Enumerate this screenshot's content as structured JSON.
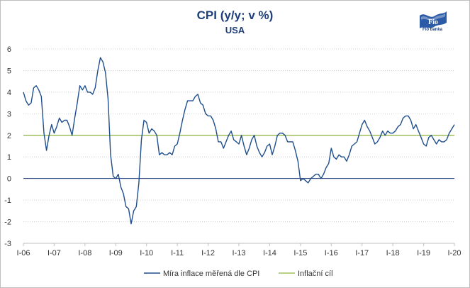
{
  "brand": {
    "logo_text": "Fio banka",
    "logo_mark": "Fio"
  },
  "chart_data": {
    "type": "line",
    "title": "CPI (y/y; v %)",
    "subtitle": "USA",
    "xlabel": "",
    "ylabel": "",
    "ylim": [
      -3,
      6
    ],
    "yticks": [
      -3,
      -2,
      -1,
      0,
      1,
      2,
      3,
      4,
      5,
      6
    ],
    "xlim": [
      2006.0,
      2020.0
    ],
    "xticks": [
      {
        "x": 2006,
        "label": "I-06"
      },
      {
        "x": 2007,
        "label": "I-07"
      },
      {
        "x": 2008,
        "label": "I-08"
      },
      {
        "x": 2009,
        "label": "I-09"
      },
      {
        "x": 2010,
        "label": "I-10"
      },
      {
        "x": 2011,
        "label": "I-11"
      },
      {
        "x": 2012,
        "label": "I-12"
      },
      {
        "x": 2013,
        "label": "I-13"
      },
      {
        "x": 2014,
        "label": "I-14"
      },
      {
        "x": 2015,
        "label": "I-15"
      },
      {
        "x": 2016,
        "label": "I-16"
      },
      {
        "x": 2017,
        "label": "I-17"
      },
      {
        "x": 2018,
        "label": "I-18"
      },
      {
        "x": 2019,
        "label": "I-19"
      },
      {
        "x": 2020,
        "label": "I-20"
      }
    ],
    "grid": "horizontal dotted",
    "legend_position": "bottom",
    "series": [
      {
        "name": "Míra inflace měřená dle CPI",
        "color": "#1f4e8c",
        "x": [
          2006.0,
          2006.083,
          2006.167,
          2006.25,
          2006.333,
          2006.417,
          2006.5,
          2006.583,
          2006.667,
          2006.75,
          2006.833,
          2006.917,
          2007.0,
          2007.083,
          2007.167,
          2007.25,
          2007.333,
          2007.417,
          2007.5,
          2007.583,
          2007.667,
          2007.75,
          2007.833,
          2007.917,
          2008.0,
          2008.083,
          2008.167,
          2008.25,
          2008.333,
          2008.417,
          2008.5,
          2008.583,
          2008.667,
          2008.75,
          2008.833,
          2008.917,
          2009.0,
          2009.083,
          2009.167,
          2009.25,
          2009.333,
          2009.417,
          2009.5,
          2009.583,
          2009.667,
          2009.75,
          2009.833,
          2009.917,
          2010.0,
          2010.083,
          2010.167,
          2010.25,
          2010.333,
          2010.417,
          2010.5,
          2010.583,
          2010.667,
          2010.75,
          2010.833,
          2010.917,
          2011.0,
          2011.083,
          2011.167,
          2011.25,
          2011.333,
          2011.417,
          2011.5,
          2011.583,
          2011.667,
          2011.75,
          2011.833,
          2011.917,
          2012.0,
          2012.083,
          2012.167,
          2012.25,
          2012.333,
          2012.417,
          2012.5,
          2012.583,
          2012.667,
          2012.75,
          2012.833,
          2012.917,
          2013.0,
          2013.083,
          2013.167,
          2013.25,
          2013.333,
          2013.417,
          2013.5,
          2013.583,
          2013.667,
          2013.75,
          2013.833,
          2013.917,
          2014.0,
          2014.083,
          2014.167,
          2014.25,
          2014.333,
          2014.417,
          2014.5,
          2014.583,
          2014.667,
          2014.75,
          2014.833,
          2014.917,
          2015.0,
          2015.083,
          2015.167,
          2015.25,
          2015.333,
          2015.417,
          2015.5,
          2015.583,
          2015.667,
          2015.75,
          2015.833,
          2015.917,
          2016.0,
          2016.083,
          2016.167,
          2016.25,
          2016.333,
          2016.417,
          2016.5,
          2016.583,
          2016.667,
          2016.75,
          2016.833,
          2016.917,
          2017.0,
          2017.083,
          2017.167,
          2017.25,
          2017.333,
          2017.417,
          2017.5,
          2017.583,
          2017.667,
          2017.75,
          2017.833,
          2017.917,
          2018.0,
          2018.083,
          2018.167,
          2018.25,
          2018.333,
          2018.417,
          2018.5,
          2018.583,
          2018.667,
          2018.75,
          2018.833,
          2018.917,
          2019.0,
          2019.083,
          2019.167,
          2019.25,
          2019.333,
          2019.417,
          2019.5,
          2019.583,
          2019.667,
          2019.75,
          2019.833,
          2019.917,
          2020.0
        ],
        "values": [
          4.0,
          3.6,
          3.4,
          3.5,
          4.2,
          4.3,
          4.1,
          3.8,
          2.1,
          1.3,
          2.0,
          2.5,
          2.1,
          2.4,
          2.8,
          2.6,
          2.7,
          2.7,
          2.4,
          2.0,
          2.8,
          3.5,
          4.3,
          4.1,
          4.3,
          4.0,
          4.0,
          3.9,
          4.2,
          5.0,
          5.6,
          5.4,
          4.9,
          3.7,
          1.1,
          0.1,
          0.0,
          0.2,
          -0.4,
          -0.7,
          -1.3,
          -1.4,
          -2.1,
          -1.5,
          -1.3,
          -0.2,
          1.8,
          2.7,
          2.6,
          2.1,
          2.3,
          2.2,
          2.0,
          1.1,
          1.2,
          1.1,
          1.1,
          1.2,
          1.1,
          1.5,
          1.6,
          2.1,
          2.7,
          3.2,
          3.6,
          3.6,
          3.6,
          3.8,
          3.9,
          3.5,
          3.4,
          3.0,
          2.9,
          2.9,
          2.7,
          2.3,
          1.7,
          1.7,
          1.4,
          1.7,
          2.0,
          2.2,
          1.8,
          1.7,
          1.6,
          2.0,
          1.5,
          1.1,
          1.4,
          1.8,
          2.0,
          1.5,
          1.2,
          1.0,
          1.2,
          1.5,
          1.6,
          1.1,
          1.5,
          2.0,
          2.1,
          2.1,
          2.0,
          1.7,
          1.7,
          1.7,
          1.3,
          0.8,
          -0.1,
          0.0,
          -0.1,
          -0.2,
          0.0,
          0.1,
          0.2,
          0.2,
          0.0,
          0.2,
          0.5,
          0.7,
          1.4,
          1.0,
          0.9,
          1.1,
          1.0,
          1.0,
          0.8,
          1.1,
          1.5,
          1.6,
          1.7,
          2.1,
          2.5,
          2.7,
          2.4,
          2.2,
          1.9,
          1.6,
          1.7,
          1.9,
          2.2,
          2.0,
          2.2,
          2.1,
          2.1,
          2.2,
          2.4,
          2.5,
          2.8,
          2.9,
          2.9,
          2.7,
          2.3,
          2.5,
          2.2,
          1.9,
          1.6,
          1.5,
          1.9,
          2.0,
          1.8,
          1.6,
          1.8,
          1.7,
          1.7,
          1.8,
          2.1,
          2.3,
          2.5
        ]
      },
      {
        "name": "Inflační cíl",
        "color": "#8db33a",
        "x": [
          2006.0,
          2020.0
        ],
        "values": [
          2,
          2
        ]
      }
    ]
  }
}
